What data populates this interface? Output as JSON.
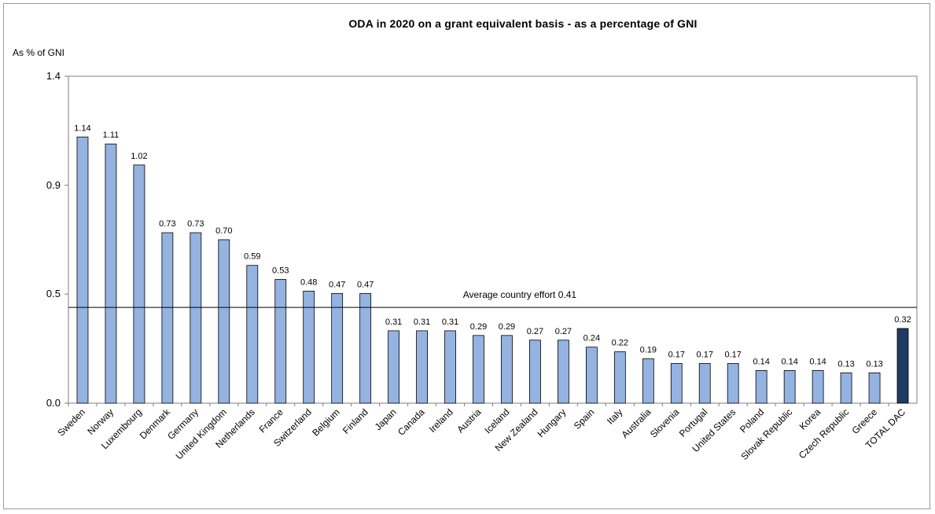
{
  "chart_data": {
    "type": "bar",
    "title": "ODA in 2020 on a grant equivalent basis - as a percentage of GNI",
    "ylabel": "As % of GNI",
    "xlabel": "",
    "ylim": [
      0,
      1.4
    ],
    "yticks": [
      "0.0",
      "0.5",
      "0.9",
      "1.4"
    ],
    "ytick_values": [
      0.0,
      0.467,
      0.933,
      1.4
    ],
    "categories": [
      "Sweden",
      "Norway",
      "Luxembourg",
      "Denmark",
      "Germany",
      "United Kingdom",
      "Netherlands",
      "France",
      "Switzerland",
      "Belgium",
      "Finland",
      "Japan",
      "Canada",
      "Ireland",
      "Austria",
      "Iceland",
      "New Zealand",
      "Hungary",
      "Spain",
      "Italy",
      "Australia",
      "Slovenia",
      "Portugal",
      "United States",
      "Poland",
      "Slovak Republic",
      "Korea",
      "Czech Republic",
      "Greece",
      "TOTAL DAC"
    ],
    "values": [
      1.14,
      1.11,
      1.02,
      0.73,
      0.73,
      0.7,
      0.59,
      0.53,
      0.48,
      0.47,
      0.47,
      0.31,
      0.31,
      0.31,
      0.29,
      0.29,
      0.27,
      0.27,
      0.24,
      0.22,
      0.19,
      0.17,
      0.17,
      0.17,
      0.14,
      0.14,
      0.14,
      0.13,
      0.13,
      0.32
    ],
    "value_labels": [
      "1.14",
      "1.11",
      "1.02",
      "0.73",
      "0.73",
      "0.70",
      "0.59",
      "0.53",
      "0.48",
      "0.47",
      "0.47",
      "0.31",
      "0.31",
      "0.31",
      "0.29",
      "0.29",
      "0.27",
      "0.27",
      "0.24",
      "0.22",
      "0.19",
      "0.17",
      "0.17",
      "0.17",
      "0.14",
      "0.14",
      "0.14",
      "0.13",
      "0.13",
      "0.32"
    ],
    "highlight_category": "TOTAL DAC",
    "reference_line": {
      "value": 0.41,
      "label": "Average country effort 0.41"
    },
    "colors": {
      "bar": "#95b3e0",
      "highlight": "#1f3a64",
      "bar_edge": "#000000",
      "axis": "#7f7f7f"
    },
    "grid": false
  }
}
